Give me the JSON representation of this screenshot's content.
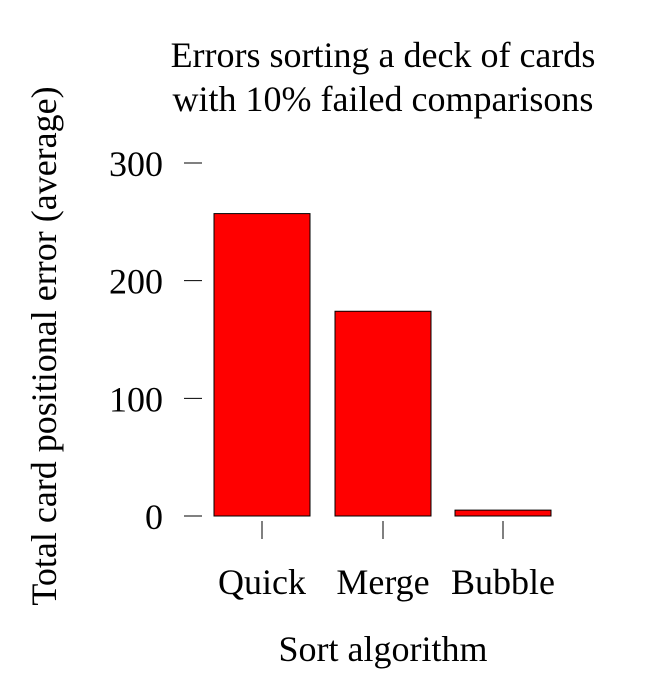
{
  "chart_data": {
    "type": "bar",
    "title_lines": [
      "Errors sorting a deck of cards",
      "with 10% failed comparisons"
    ],
    "xlabel": "Sort algorithm",
    "ylabel": "Total card positional error (average)",
    "categories": [
      "Quick",
      "Merge",
      "Bubble"
    ],
    "values": [
      257,
      174,
      5
    ],
    "ylim": [
      0,
      300
    ],
    "yticks": [
      0,
      100,
      200,
      300
    ],
    "ytick_labels": [
      "0",
      "100",
      "200",
      "300"
    ],
    "bar_color": "#ff0000",
    "grid": false,
    "legend": "none"
  }
}
